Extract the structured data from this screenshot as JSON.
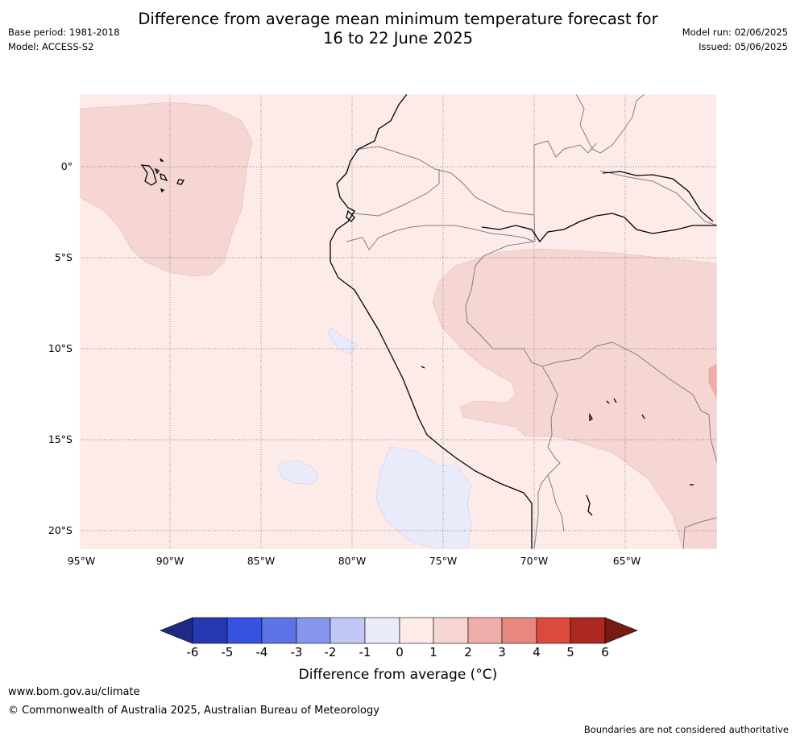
{
  "title_line1": "Difference from average mean minimum temperature forecast for",
  "title_line2": "16 to 22 June 2025",
  "base_period": "Base period: 1981-2018",
  "model": "Model: ACCESS-S2",
  "model_run": "Model run: 02/06/2025",
  "issued": "Issued: 05/06/2025",
  "map": {
    "lat_labels": [
      "0°",
      "5°S",
      "10°S",
      "15°S",
      "20°S"
    ],
    "lon_labels": [
      "95°W",
      "90°W",
      "85°W",
      "80°W",
      "75°W",
      "70°W",
      "65°W"
    ],
    "lat_range": [
      -21,
      4
    ],
    "lon_range": [
      -95,
      -60
    ],
    "gridlines": true,
    "colors": {
      "cat_0_1": "#fcebe9",
      "cat_1_2": "#f5d6d3",
      "cat_2_3": "#efaeaa",
      "cat_m1_0": "#e9ebfb",
      "coast": "#000000",
      "border": "#808080"
    }
  },
  "colorbar": {
    "title": "Difference from average (°C)",
    "ticks": [
      "-6",
      "-5",
      "-4",
      "-3",
      "-2",
      "-1",
      "0",
      "1",
      "2",
      "3",
      "4",
      "5",
      "6"
    ],
    "colors": [
      "#1e2b84",
      "#2839b4",
      "#3552e2",
      "#5c74e6",
      "#8696ec",
      "#c1c8f5",
      "#e9ebfb",
      "#fcebe9",
      "#f5d6d3",
      "#efaeaa",
      "#e8877e",
      "#dc4a3e",
      "#ac2820",
      "#751b14"
    ]
  },
  "footer": {
    "url": "www.bom.gov.au/climate",
    "copyright": "© Commonwealth of Australia 2025, Australian Bureau of Meteorology",
    "disclaimer": "Boundaries are not considered authoritative"
  }
}
